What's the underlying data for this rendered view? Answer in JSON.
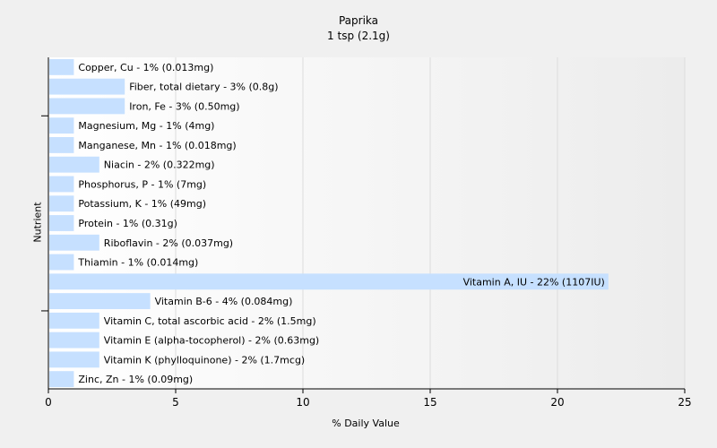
{
  "chart_data": {
    "type": "bar",
    "orientation": "horizontal",
    "title": "Paprika",
    "subtitle": "1 tsp (2.1g)",
    "xlabel": "% Daily Value",
    "ylabel": "Nutrient",
    "xlim": [
      0,
      25
    ],
    "xticks": [
      0,
      5,
      10,
      15,
      20,
      25
    ],
    "grid": true,
    "bar_color": "#c6e0ff",
    "categories": [
      "Copper, Cu",
      "Fiber, total dietary",
      "Iron, Fe",
      "Magnesium, Mg",
      "Manganese, Mn",
      "Niacin",
      "Phosphorus, P",
      "Potassium, K",
      "Protein",
      "Riboflavin",
      "Thiamin",
      "Vitamin A, IU",
      "Vitamin B-6",
      "Vitamin C, total ascorbic acid",
      "Vitamin E (alpha-tocopherol)",
      "Vitamin K (phylloquinone)",
      "Zinc, Zn"
    ],
    "values": [
      1,
      3,
      3,
      1,
      1,
      2,
      1,
      1,
      1,
      2,
      1,
      22,
      4,
      2,
      2,
      2,
      1
    ],
    "labels": [
      "Copper, Cu - 1% (0.013mg)",
      "Fiber, total dietary - 3% (0.8g)",
      "Iron, Fe - 3% (0.50mg)",
      "Magnesium, Mg - 1% (4mg)",
      "Manganese, Mn - 1% (0.018mg)",
      "Niacin - 2% (0.322mg)",
      "Phosphorus, P - 1% (7mg)",
      "Potassium, K - 1% (49mg)",
      "Protein - 1% (0.31g)",
      "Riboflavin - 2% (0.037mg)",
      "Thiamin - 1% (0.014mg)",
      "Vitamin A, IU - 22% (1107IU)",
      "Vitamin B-6 - 4% (0.084mg)",
      "Vitamin C, total ascorbic acid - 2% (1.5mg)",
      "Vitamin E (alpha-tocopherol) - 2% (0.63mg)",
      "Vitamin K (phylloquinone) - 2% (1.7mcg)",
      "Zinc, Zn - 1% (0.09mg)"
    ]
  }
}
